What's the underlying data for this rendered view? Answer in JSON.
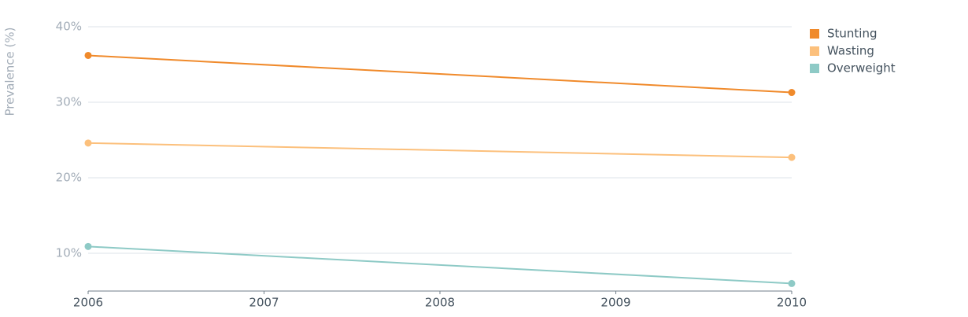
{
  "chart_data": {
    "type": "line",
    "y_label": "Prevalence (%)",
    "x": [
      2006,
      2010
    ],
    "xlim": [
      2006,
      2010
    ],
    "xticks": [
      2006,
      2007,
      2008,
      2009,
      2010
    ],
    "ylim": [
      5,
      40
    ],
    "yticks": [
      {
        "value": 10,
        "label": "10%"
      },
      {
        "value": 20,
        "label": "20%"
      },
      {
        "value": 30,
        "label": "30%"
      },
      {
        "value": 40,
        "label": "40%"
      }
    ],
    "grid": true,
    "legend": "right",
    "series": [
      {
        "name": "Stunting",
        "color": "#f08a2b",
        "values": [
          36.2,
          31.3
        ]
      },
      {
        "name": "Wasting",
        "color": "#fcc07c",
        "values": [
          24.6,
          22.7
        ]
      },
      {
        "name": "Overweight",
        "color": "#8ecac6",
        "values": [
          10.9,
          6.0
        ]
      }
    ]
  }
}
